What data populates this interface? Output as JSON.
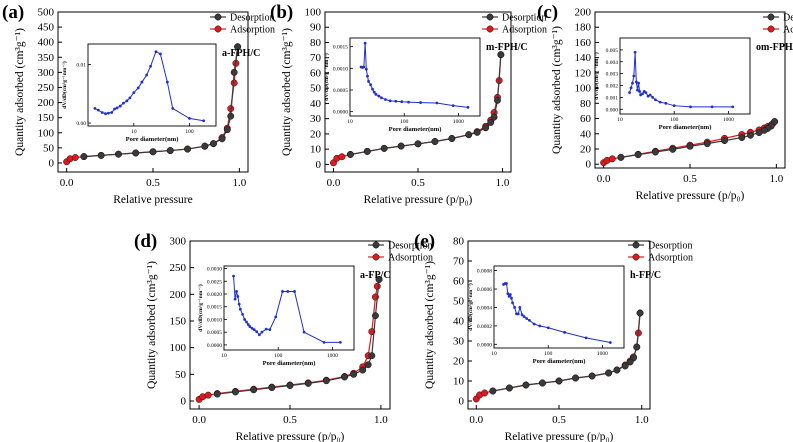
{
  "colors": {
    "desorption": "#3a3a3a",
    "adsorption": "#e0191f",
    "inset": "#1f2fd1",
    "axis": "#000000"
  },
  "chart_data": [
    {
      "type": "scatter",
      "panel_label": "(a)",
      "xlabel": "Relative pressure",
      "ylabel": "Quantity adsorbed (cm³g⁻¹)",
      "xlim": [
        -0.05,
        1.05
      ],
      "ylim": [
        -30,
        500
      ],
      "xticks": [
        0.0,
        0.5,
        1.0
      ],
      "xtick_labels": [
        "0.0",
        "0.5",
        "1.0"
      ],
      "yticks": [
        0,
        50,
        100,
        150,
        200,
        250,
        300,
        350,
        400,
        450,
        500
      ],
      "legend": [
        "Desorption",
        "Adsorption"
      ],
      "series": [
        {
          "name": "Adsorption",
          "x": [
            0.0,
            0.02,
            0.05,
            0.1,
            0.2,
            0.3,
            0.4,
            0.5,
            0.6,
            0.7,
            0.8,
            0.85,
            0.9,
            0.93,
            0.95,
            0.97,
            0.98,
            0.99
          ],
          "y": [
            4,
            14,
            18,
            21,
            25,
            29,
            33,
            37,
            41,
            46,
            55,
            64,
            84,
            115,
            180,
            265,
            330,
            385
          ]
        },
        {
          "name": "Desorption",
          "x": [
            0.99,
            0.97,
            0.95,
            0.93,
            0.9,
            0.85,
            0.8,
            0.7,
            0.6,
            0.5,
            0.4,
            0.3,
            0.2,
            0.1
          ],
          "y": [
            385,
            300,
            155,
            110,
            80,
            64,
            56,
            46,
            41,
            37,
            33,
            29,
            25,
            21
          ]
        }
      ],
      "inset": {
        "label": "a-FPH/C",
        "xlabel": "Pore diameter(nm)",
        "ylabel": "dV/dD(cm³g⁻¹nm⁻¹)",
        "xscale": "log",
        "xlim": [
          1.5,
          300
        ],
        "ylim": [
          -0.0005,
          0.0135
        ],
        "xtick_labels": [
          "10",
          "100"
        ],
        "ytick_labels": [
          "0.00",
          "0.01"
        ],
        "x": [
          2.0,
          2.3,
          2.7,
          3.1,
          3.5,
          4.0,
          4.5,
          5.0,
          5.7,
          6.5,
          7.5,
          8.5,
          10,
          12,
          14,
          17,
          20,
          25,
          30,
          40,
          50,
          100,
          180
        ],
        "y": [
          0.0025,
          0.0022,
          0.0018,
          0.0016,
          0.0017,
          0.0018,
          0.0024,
          0.0026,
          0.0029,
          0.0034,
          0.0038,
          0.0043,
          0.0052,
          0.006,
          0.007,
          0.0082,
          0.0097,
          0.0122,
          0.0118,
          0.007,
          0.0025,
          0.0008,
          0.0004
        ]
      }
    },
    {
      "type": "scatter",
      "panel_label": "(b)",
      "xlabel": "Relative pressure (p/p₀)",
      "ylabel": "Quantity adsorbed (cm³g⁻¹)",
      "xlim": [
        -0.05,
        1.05
      ],
      "ylim": [
        -5,
        100
      ],
      "xticks": [
        0.0,
        0.5,
        1.0
      ],
      "xtick_labels": [
        "0.0",
        "0.5",
        "1.0"
      ],
      "yticks": [
        0,
        10,
        20,
        30,
        40,
        50,
        60,
        70,
        80,
        90,
        100
      ],
      "legend": [
        "Desorption",
        "Adsorption"
      ],
      "series": [
        {
          "name": "Adsorption",
          "x": [
            0.0,
            0.02,
            0.05,
            0.1,
            0.2,
            0.3,
            0.4,
            0.5,
            0.6,
            0.7,
            0.8,
            0.85,
            0.9,
            0.93,
            0.95,
            0.97,
            0.98,
            0.99
          ],
          "y": [
            1,
            4,
            5,
            6.5,
            8.5,
            10.5,
            12,
            13.5,
            15,
            17,
            19.5,
            21.5,
            25,
            29,
            34,
            44,
            55,
            72
          ]
        },
        {
          "name": "Desorption",
          "x": [
            0.99,
            0.97,
            0.95,
            0.93,
            0.9,
            0.85,
            0.8,
            0.7,
            0.6,
            0.5,
            0.4,
            0.3,
            0.2,
            0.1
          ],
          "y": [
            72,
            42,
            31,
            27.5,
            24,
            21,
            19.5,
            17,
            15,
            13.5,
            12,
            10.5,
            8.5,
            6.5
          ]
        }
      ],
      "inset": {
        "label": "m-FPH/C",
        "xlabel": "Pore diameter(nm)",
        "ylabel": "dV/dD(cm³g⁻¹nm⁻¹)",
        "xscale": "log",
        "xlim": [
          10,
          2500
        ],
        "ylim": [
          -0.0001,
          0.0017
        ],
        "xtick_labels": [
          "10",
          "100",
          "1000"
        ],
        "ytick_labels": [
          "0.0000",
          "0.0005",
          "0.0010",
          "0.0015"
        ],
        "x": [
          16,
          17,
          18,
          19,
          20,
          21,
          22,
          24,
          26,
          28,
          30,
          34,
          38,
          45,
          55,
          70,
          90,
          120,
          200,
          400,
          800,
          1500
        ],
        "y": [
          0.00103,
          0.00102,
          0.00103,
          0.00158,
          0.00098,
          0.00082,
          0.0007,
          0.00062,
          0.00052,
          0.00045,
          0.0004,
          0.00036,
          0.00032,
          0.00028,
          0.00025,
          0.00024,
          0.00023,
          0.00022,
          0.00021,
          0.0002,
          0.00014,
          0.0001
        ]
      }
    },
    {
      "type": "scatter",
      "panel_label": "(c)",
      "xlabel": "Relative pressure (p/p₀)",
      "ylabel": "Quantity adsorbed (cm³g⁻¹)",
      "xlim": [
        -0.05,
        1.05
      ],
      "ylim": [
        -5,
        200
      ],
      "xticks": [
        0.0,
        0.5,
        1.0
      ],
      "xtick_labels": [
        "0.0",
        "0.5",
        "1.0"
      ],
      "yticks": [
        0,
        20,
        40,
        60,
        80,
        100,
        120,
        140,
        160,
        180,
        200
      ],
      "legend": [
        "Desorption",
        "Adsorption"
      ],
      "series": [
        {
          "name": "Adsorption",
          "x": [
            0.0,
            0.02,
            0.05,
            0.1,
            0.2,
            0.3,
            0.4,
            0.5,
            0.6,
            0.7,
            0.8,
            0.85,
            0.9,
            0.93,
            0.95,
            0.97,
            0.98,
            0.99
          ],
          "y": [
            2,
            5,
            7,
            9,
            13,
            17,
            21,
            25,
            29,
            34,
            39,
            42,
            45,
            47.5,
            49.5,
            51.5,
            53.5,
            56
          ]
        },
        {
          "name": "Desorption",
          "x": [
            0.99,
            0.97,
            0.95,
            0.93,
            0.9,
            0.85,
            0.8,
            0.7,
            0.6,
            0.5,
            0.4,
            0.3,
            0.2,
            0.1
          ],
          "y": [
            56,
            50,
            47,
            44.5,
            41.5,
            38,
            35,
            31,
            27,
            23.5,
            19.5,
            16,
            12.5,
            9
          ]
        }
      ],
      "inset": {
        "label": "om-FPH/C",
        "xlabel": "Pore diameter(nm)",
        "ylabel": "dV/dD(cm³g⁻¹nm⁻¹)",
        "xscale": "log",
        "xlim": [
          10,
          2500
        ],
        "ylim": [
          -0.0004,
          0.006
        ],
        "xtick_labels": [
          "10",
          "100",
          "1000"
        ],
        "ytick_labels": [
          "0.000",
          "0.001",
          "0.002",
          "0.003",
          "0.004",
          "0.005"
        ],
        "x": [
          15,
          16,
          17,
          18,
          19,
          20,
          21,
          22,
          23,
          24,
          26,
          28,
          30,
          33,
          36,
          40,
          45,
          55,
          70,
          100,
          200,
          500,
          1200
        ],
        "y": [
          0.0014,
          0.0018,
          0.0022,
          0.0028,
          0.0048,
          0.0023,
          0.0016,
          0.0022,
          0.0015,
          0.0012,
          0.0013,
          0.0015,
          0.0014,
          0.0011,
          0.0012,
          0.001,
          0.0008,
          0.0006,
          0.0005,
          0.0003,
          0.0002,
          0.0002,
          0.0002
        ]
      }
    },
    {
      "type": "scatter",
      "panel_label": "(d)",
      "xlabel": "Relative pressure (p/p₀)",
      "ylabel": "Quantity adsorbed (cm³g⁻¹)",
      "xlim": [
        -0.05,
        1.05
      ],
      "ylim": [
        -15,
        300
      ],
      "xticks": [
        0.0,
        0.5,
        1.0
      ],
      "xtick_labels": [
        "0.0",
        "0.5",
        "1.0"
      ],
      "yticks": [
        0,
        50,
        100,
        150,
        200,
        250,
        300
      ],
      "legend": [
        "Desorption",
        "Adsorption"
      ],
      "series": [
        {
          "name": "Adsorption",
          "x": [
            0.0,
            0.02,
            0.05,
            0.1,
            0.2,
            0.3,
            0.4,
            0.5,
            0.6,
            0.7,
            0.8,
            0.85,
            0.9,
            0.93,
            0.95,
            0.97,
            0.98,
            0.99
          ],
          "y": [
            3,
            8,
            11,
            14,
            18,
            22,
            26,
            30,
            34,
            39,
            46,
            52,
            64,
            85,
            130,
            195,
            215,
            228
          ]
        },
        {
          "name": "Desorption",
          "x": [
            0.99,
            0.97,
            0.95,
            0.93,
            0.9,
            0.85,
            0.8,
            0.7,
            0.6,
            0.5,
            0.4,
            0.3,
            0.2,
            0.1
          ],
          "y": [
            228,
            160,
            85,
            68,
            58,
            50,
            45,
            38,
            33,
            29,
            25,
            21,
            17,
            13
          ]
        }
      ],
      "inset": {
        "label": "a-FP/C",
        "xlabel": "Pore diameter(nm)",
        "ylabel": "dV/dD(cm³g⁻¹nm⁻¹)",
        "xscale": "log",
        "xlim": [
          10,
          2500
        ],
        "ylim": [
          -0.0002,
          0.0031
        ],
        "xtick_labels": [
          "10",
          "100",
          "1000"
        ],
        "ytick_labels": [
          "0.0000",
          "0.0005",
          "0.0010",
          "0.0015",
          "0.0020",
          "0.0025",
          "0.0030"
        ],
        "x": [
          15,
          16,
          17,
          18,
          19,
          20,
          22,
          24,
          26,
          28,
          30,
          33,
          36,
          40,
          45,
          50,
          60,
          70,
          90,
          120,
          150,
          200,
          300,
          700,
          1400
        ],
        "y": [
          0.0027,
          0.0018,
          0.0021,
          0.0019,
          0.0016,
          0.0014,
          0.0012,
          0.001,
          0.0009,
          0.0008,
          0.00072,
          0.00065,
          0.0006,
          0.00052,
          0.0004,
          0.0005,
          0.00062,
          0.0006,
          0.0011,
          0.0021,
          0.0021,
          0.0021,
          0.0005,
          0.0001,
          0.0001
        ]
      }
    },
    {
      "type": "scatter",
      "panel_label": "(e)",
      "xlabel": "Relative pressure (p/p₀)",
      "ylabel": "Quantity adsorbed (cm³g⁻¹)",
      "xlim": [
        -0.05,
        1.05
      ],
      "ylim": [
        -4,
        80
      ],
      "xticks": [
        0.0,
        0.5,
        1.0
      ],
      "xtick_labels": [
        "0.0",
        "0.5",
        "1.0"
      ],
      "yticks": [
        0,
        10,
        20,
        30,
        40,
        50,
        60,
        70,
        80
      ],
      "legend": [
        "Desorption",
        "Adsorption"
      ],
      "series": [
        {
          "name": "Adsorption",
          "x": [
            0.0,
            0.02,
            0.05,
            0.1,
            0.2,
            0.3,
            0.4,
            0.5,
            0.6,
            0.7,
            0.8,
            0.85,
            0.9,
            0.93,
            0.95,
            0.97,
            0.98,
            0.99
          ],
          "y": [
            1,
            3,
            4,
            5,
            6.5,
            8,
            9,
            10,
            11.5,
            12.5,
            14,
            15.5,
            18,
            20,
            22,
            27,
            34,
            44
          ]
        },
        {
          "name": "Desorption",
          "x": [
            0.99,
            0.97,
            0.95,
            0.93,
            0.9,
            0.85,
            0.8,
            0.7,
            0.6,
            0.5,
            0.4,
            0.3,
            0.2,
            0.1
          ],
          "y": [
            44,
            27,
            21.5,
            19.5,
            17.5,
            15.5,
            14,
            12.5,
            11.5,
            10,
            9,
            8,
            6.5,
            5
          ]
        }
      ],
      "inset": {
        "label": "h-FP/C",
        "xlabel": "Pore diameter(nm)",
        "ylabel": "dV/dD(cm³g⁻¹nm⁻¹)",
        "xscale": "log",
        "xlim": [
          10,
          2500
        ],
        "ylim": [
          -4e-05,
          0.00085
        ],
        "xtick_labels": [
          "10",
          "100",
          "1000"
        ],
        "ytick_labels": [
          "0.0000",
          "0.0002",
          "0.0004",
          "0.0006",
          "0.0008"
        ],
        "x": [
          15,
          16,
          17,
          18,
          19,
          20,
          21,
          22,
          24,
          26,
          28,
          30,
          33,
          36,
          40,
          45,
          55,
          70,
          100,
          200,
          500,
          1400
        ],
        "y": [
          0.00065,
          0.00066,
          0.00066,
          0.00055,
          0.00052,
          0.00054,
          0.0005,
          0.00045,
          0.0004,
          0.00033,
          0.00033,
          0.0004,
          0.00032,
          0.0003,
          0.00028,
          0.00026,
          0.00022,
          0.0002,
          0.00018,
          0.00013,
          7e-05,
          2e-05
        ]
      }
    }
  ]
}
